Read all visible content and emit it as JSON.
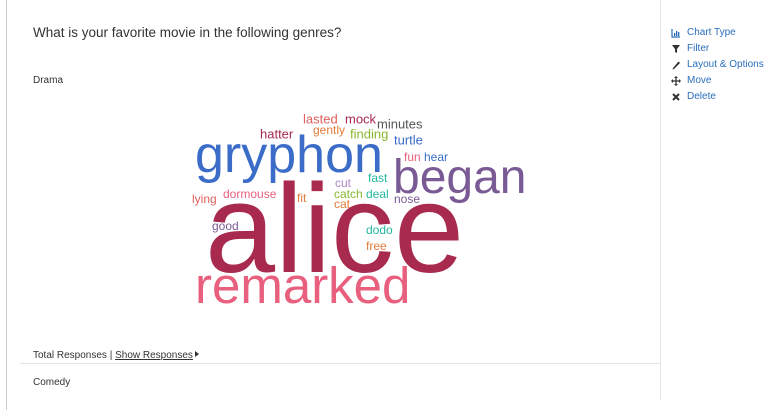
{
  "question": "What is your favorite movie in the following genres?",
  "sections": [
    {
      "title": "Drama",
      "words": [
        "alice",
        "remarked",
        "gryphon",
        "began",
        "lasted",
        "mock",
        "minutes",
        "gently",
        "hatter",
        "finding",
        "turtle",
        "fun",
        "hear",
        "fast",
        "cut",
        "catch",
        "deal",
        "nose",
        "dormouse",
        "fit",
        "lying",
        "cat",
        "good",
        "dodo",
        "free"
      ],
      "total_responses": "Total Responses |",
      "show_responses": "Show Responses"
    },
    {
      "title": "Comedy"
    }
  ],
  "menu": [
    "Chart Type",
    "Filter",
    "Layout & Options",
    "Move",
    "Delete"
  ]
}
